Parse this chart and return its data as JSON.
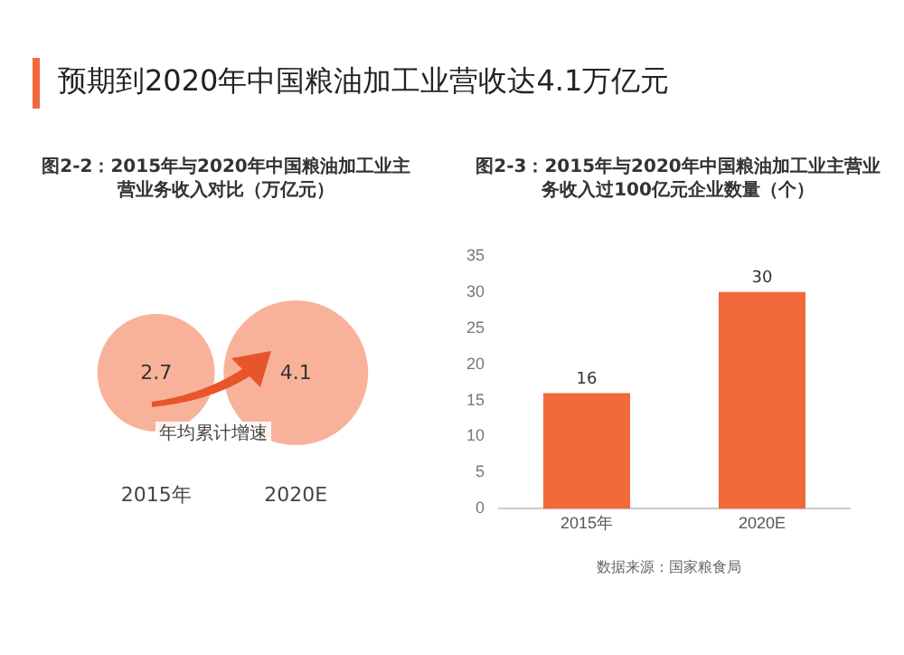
{
  "chart_data": [
    {
      "type": "other",
      "title": "预期到2020年中国粮油加工业营收达4.1万亿元"
    },
    {
      "type": "other",
      "title": "图2-2：2015年与2020年中国粮油加工业主营业务收入对比（万亿元）",
      "categories": [
        "2015年",
        "2020E"
      ],
      "values": [
        2.7,
        4.1
      ],
      "color": "#f8b29a",
      "data_labels": true,
      "annotations": [
        "年均累计增速"
      ]
    },
    {
      "type": "bar",
      "title": "图2-3：2015年与2020年中国粮油加工业主营业务收入过100亿元企业数量（个）",
      "categories": [
        "2015年",
        "2020E"
      ],
      "values": [
        16,
        30
      ],
      "color": "#f26a3b",
      "ylim": [
        0,
        35
      ],
      "yticks": [
        0,
        5,
        10,
        15,
        20,
        25,
        30,
        35
      ],
      "data_labels": true,
      "grid": false,
      "annotations": [
        "数据来源：国家粮食局"
      ]
    }
  ]
}
